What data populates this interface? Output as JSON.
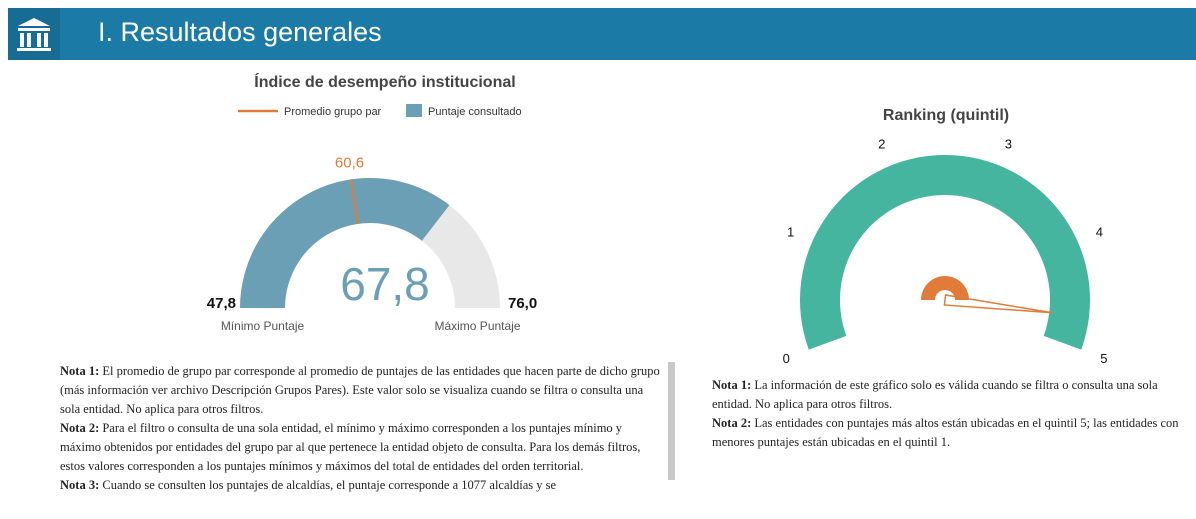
{
  "header": {
    "title": "I. Resultados generales"
  },
  "chart_data": [
    {
      "type": "gauge",
      "title": "Índice de desempeño institucional",
      "series": [
        {
          "name": "Promedio grupo par",
          "color": "#e07b39",
          "values": [
            60.6
          ],
          "value_labels": [
            "60,6"
          ]
        },
        {
          "name": "Puntaje consultado",
          "color": "#6a9fb5",
          "values": [
            67.8
          ],
          "value_labels": [
            "67,8"
          ]
        }
      ],
      "ylim": [
        47.8,
        76.0
      ],
      "yticks": [
        {
          "value": 47.8,
          "label": "47,8"
        },
        {
          "value": 76.0,
          "label": "76,0"
        }
      ],
      "ytick_captions": [
        "Mínimo Puntaje",
        "Máximo Puntaje"
      ],
      "track_color": "#e8e8e8"
    },
    {
      "type": "gauge",
      "title": "Ranking (quintil)",
      "values": [
        4.7
      ],
      "color": "#45b5a0",
      "needle_color": "#e07b39",
      "ylim": [
        0,
        5
      ],
      "yticks": [
        0,
        1,
        2,
        3,
        4,
        5
      ]
    }
  ],
  "notes_left": [
    {
      "label": "Nota 1:",
      "text": "El promedio de grupo par corresponde al promedio de puntajes de las entidades que hacen parte de dicho grupo (más información ver archivo Descripción Grupos Pares). Este valor solo se visualiza cuando se filtra o consulta una sola entidad. No aplica para otros filtros."
    },
    {
      "label": "Nota 2:",
      "text": "Para el filtro o consulta de una sola entidad, el mínimo y máximo corresponden a los puntajes mínimo y máximo obtenidos por entidades del grupo par al que pertenece la entidad objeto de consulta. Para los demás filtros, estos valores corresponden a los puntajes mínimos y máximos del total de entidades del orden territorial."
    },
    {
      "label": "Nota 3:",
      "text": "Cuando se consulten los puntajes de alcaldías, el puntaje corresponde a 1077 alcaldías y se"
    }
  ],
  "notes_right": [
    {
      "label": "Nota 1:",
      "text": "La información de este gráfico solo es válida cuando se filtra o consulta una sola entidad. No aplica para otros filtros."
    },
    {
      "label": "Nota 2:",
      "text": "Las entidades con puntajes más altos están ubicadas en el quintil 5; las entidades con menores puntajes están ubicadas en el quintil 1."
    }
  ]
}
